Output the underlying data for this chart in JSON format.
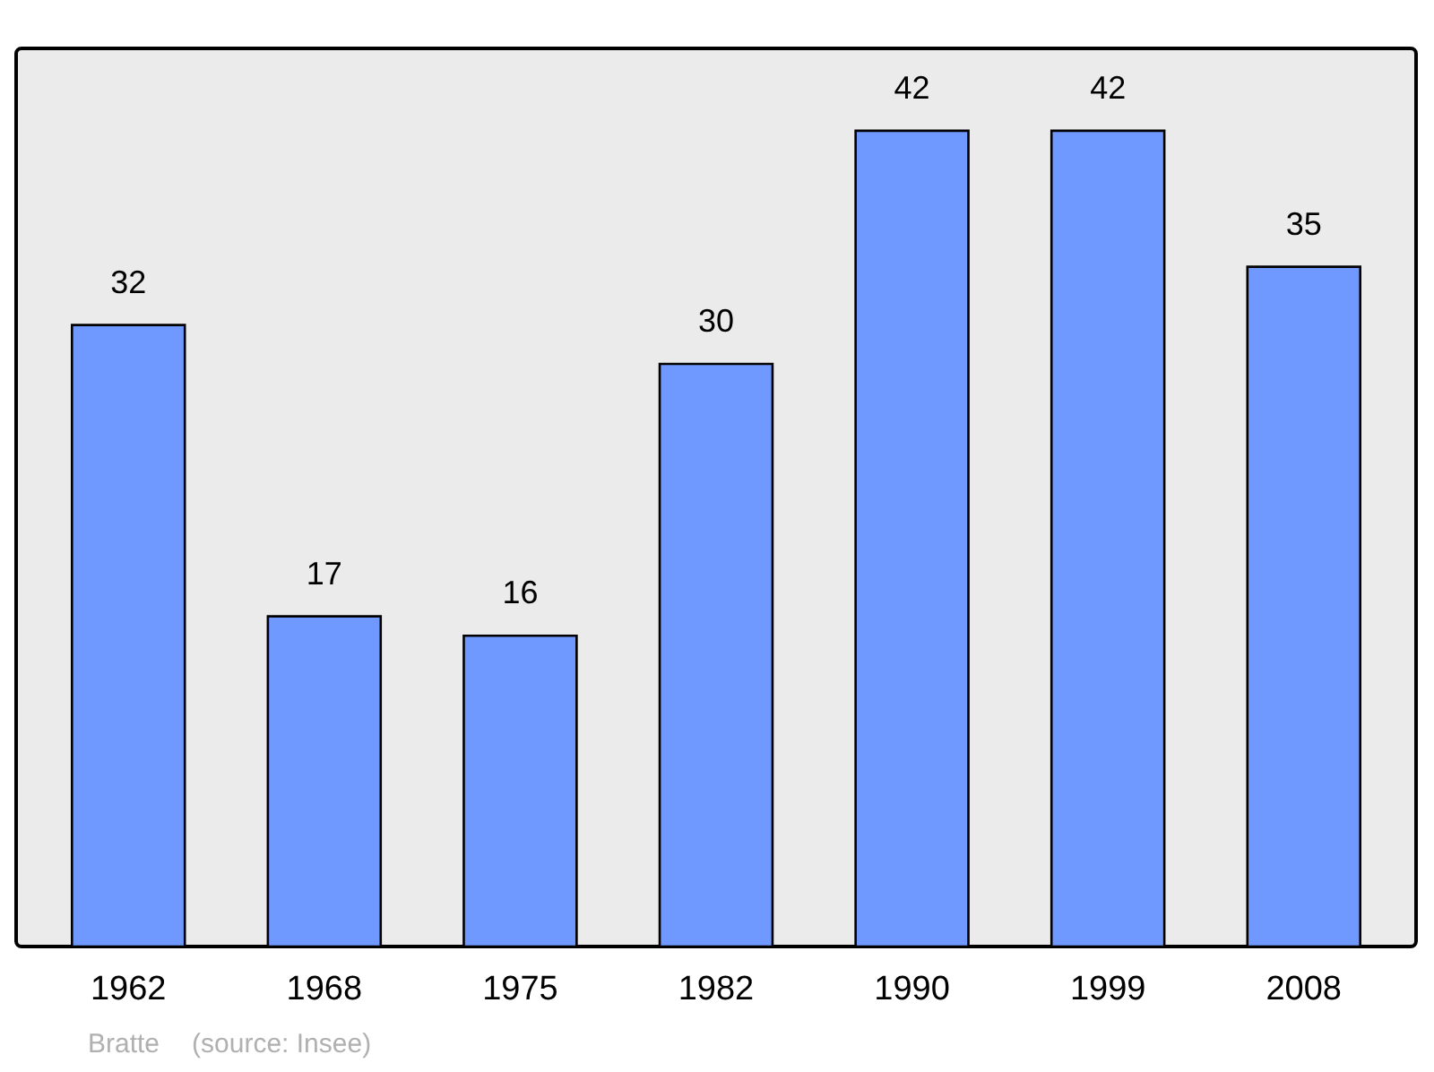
{
  "chart_data": {
    "type": "bar",
    "categories": [
      "1962",
      "1968",
      "1975",
      "1982",
      "1990",
      "1999",
      "2008"
    ],
    "values": [
      32,
      17,
      16,
      30,
      42,
      42,
      35
    ],
    "color": "#7099ff",
    "data_labels": true,
    "annotations": [
      "Bratte",
      "(source: Insee)"
    ]
  }
}
